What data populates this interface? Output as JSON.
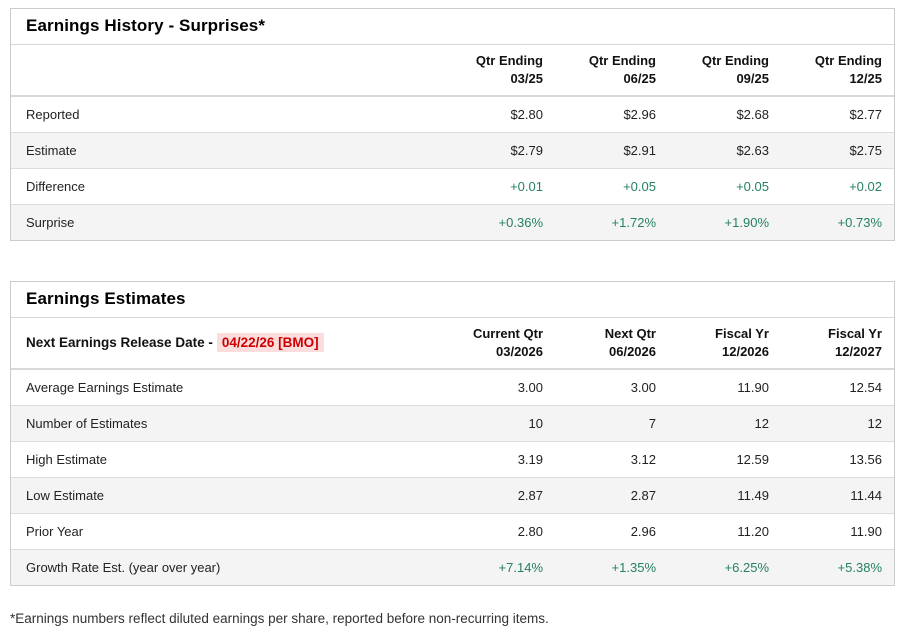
{
  "history": {
    "title": "Earnings History - Surprises*",
    "columns": [
      {
        "line1": "Qtr Ending",
        "line2": "03/25"
      },
      {
        "line1": "Qtr Ending",
        "line2": "06/25"
      },
      {
        "line1": "Qtr Ending",
        "line2": "09/25"
      },
      {
        "line1": "Qtr Ending",
        "line2": "12/25"
      }
    ],
    "rows": [
      {
        "label": "Reported",
        "values": [
          "$2.80",
          "$2.96",
          "$2.68",
          "$2.77"
        ],
        "color": "default"
      },
      {
        "label": "Estimate",
        "values": [
          "$2.79",
          "$2.91",
          "$2.63",
          "$2.75"
        ],
        "color": "default"
      },
      {
        "label": "Difference",
        "values": [
          "+0.01",
          "+0.05",
          "+0.05",
          "+0.02"
        ],
        "color": "green"
      },
      {
        "label": "Surprise",
        "values": [
          "+0.36%",
          "+1.72%",
          "+1.90%",
          "+0.73%"
        ],
        "color": "green"
      }
    ]
  },
  "estimates": {
    "title": "Earnings Estimates",
    "release_label": "Next Earnings Release Date -",
    "release_date": "04/22/26 [BMO]",
    "columns": [
      {
        "line1": "Current Qtr",
        "line2": "03/2026"
      },
      {
        "line1": "Next Qtr",
        "line2": "06/2026"
      },
      {
        "line1": "Fiscal Yr",
        "line2": "12/2026"
      },
      {
        "line1": "Fiscal Yr",
        "line2": "12/2027"
      }
    ],
    "rows": [
      {
        "label": "Average Earnings Estimate",
        "values": [
          "3.00",
          "3.00",
          "11.90",
          "12.54"
        ],
        "color": "default"
      },
      {
        "label": "Number of Estimates",
        "values": [
          "10",
          "7",
          "12",
          "12"
        ],
        "color": "default"
      },
      {
        "label": "High Estimate",
        "values": [
          "3.19",
          "3.12",
          "12.59",
          "13.56"
        ],
        "color": "default"
      },
      {
        "label": "Low Estimate",
        "values": [
          "2.87",
          "2.87",
          "11.49",
          "11.44"
        ],
        "color": "default"
      },
      {
        "label": "Prior Year",
        "values": [
          "2.80",
          "2.96",
          "11.20",
          "11.90"
        ],
        "color": "default"
      },
      {
        "label": "Growth Rate Est. (year over year)",
        "values": [
          "+7.14%",
          "+1.35%",
          "+6.25%",
          "+5.38%"
        ],
        "color": "green"
      }
    ]
  },
  "footnote": "*Earnings numbers reflect diluted earnings per share, reported before non-recurring items.",
  "colors": {
    "positive_green": "#25825f",
    "alert_red": "#cc0000",
    "alert_red_bg": "#fcdcdc",
    "stripe_gray": "#f4f4f4",
    "border_gray": "#cccccc"
  }
}
